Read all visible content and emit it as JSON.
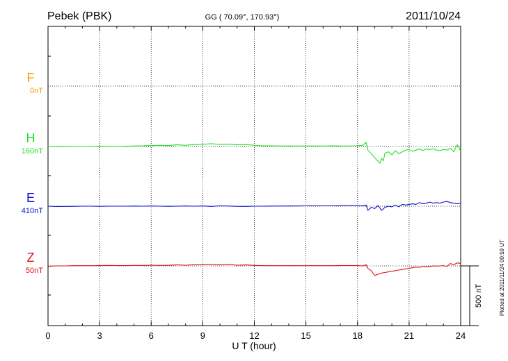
{
  "header": {
    "station": "Pebek (PBK)",
    "coords": "GG ( 70.09°, 170.93°)",
    "date": "2011/10/24"
  },
  "footer": {
    "plotted": "Plotted at 2011/11/24 00:59 UT"
  },
  "chart_data": {
    "type": "line",
    "xlabel": "U T (hour)",
    "xlim": [
      0,
      24
    ],
    "xticks": [
      0,
      3,
      6,
      9,
      12,
      15,
      18,
      21,
      24
    ],
    "ylabel": "",
    "grid": true,
    "scale_bar": {
      "label": "500 nT",
      "value_nT": 500
    },
    "colors": {
      "F": "#f5a000",
      "H": "#22e022",
      "E": "#1010cc",
      "Z": "#e01010"
    },
    "series": [
      {
        "name": "F",
        "offset": "0nT",
        "x": [],
        "values": []
      },
      {
        "name": "H",
        "offset": "160nT",
        "x": [
          0,
          0.5,
          1,
          1.5,
          2,
          2.5,
          3,
          3.5,
          4,
          4.5,
          5,
          5.5,
          6,
          6.5,
          7,
          7.5,
          8,
          8.5,
          9,
          9.5,
          10,
          10.5,
          11,
          11.5,
          12,
          12.5,
          13,
          13.5,
          14,
          14.5,
          15,
          15.5,
          16,
          16.5,
          17,
          17.5,
          18,
          18.3,
          18.5,
          18.6,
          18.8,
          19,
          19.2,
          19.3,
          19.4,
          19.5,
          19.6,
          19.8,
          20,
          20.2,
          20.4,
          20.6,
          20.8,
          21,
          21.2,
          21.4,
          21.6,
          21.8,
          22,
          22.2,
          22.4,
          22.6,
          22.8,
          23,
          23.2,
          23.4,
          23.6,
          23.8,
          24
        ],
        "values": [
          0,
          -2,
          -2,
          0,
          0,
          0,
          2,
          1,
          0,
          2,
          4,
          5,
          8,
          10,
          8,
          14,
          10,
          16,
          18,
          24,
          16,
          20,
          14,
          16,
          10,
          6,
          5,
          4,
          4,
          4,
          4,
          4,
          4,
          5,
          4,
          4,
          6,
          10,
          35,
          -30,
          -60,
          -95,
          -125,
          -140,
          -100,
          -120,
          -55,
          -45,
          -70,
          -35,
          -60,
          -45,
          -30,
          -25,
          -40,
          -30,
          -20,
          -35,
          -20,
          -25,
          -20,
          -30,
          -35,
          -25,
          -30,
          -15,
          -45,
          15,
          -40
        ]
      },
      {
        "name": "E",
        "offset": "410nT",
        "x": [
          0,
          0.5,
          1,
          1.5,
          2,
          2.5,
          3,
          3.5,
          4,
          4.5,
          5,
          5.5,
          6,
          6.5,
          7,
          7.5,
          8,
          8.5,
          9,
          9.5,
          10,
          10.5,
          11,
          11.5,
          12,
          12.5,
          13,
          13.5,
          14,
          14.5,
          15,
          15.5,
          16,
          16.5,
          17,
          17.5,
          18,
          18.3,
          18.5,
          18.6,
          18.8,
          19,
          19.2,
          19.4,
          19.6,
          19.8,
          20,
          20.2,
          20.4,
          20.6,
          20.8,
          21,
          21.2,
          21.4,
          21.6,
          21.8,
          22,
          22.2,
          22.4,
          22.6,
          22.8,
          23,
          23.2,
          23.4,
          23.6,
          23.8,
          24
        ],
        "values": [
          0,
          -3,
          -2,
          -1,
          0,
          0,
          -1,
          0,
          0,
          0,
          1,
          0,
          2,
          0,
          -1,
          0,
          2,
          0,
          2,
          -2,
          3,
          1,
          -1,
          -2,
          0,
          0,
          1,
          1,
          2,
          2,
          3,
          3,
          3,
          3,
          4,
          4,
          4,
          3,
          10,
          -35,
          -10,
          -20,
          5,
          -35,
          -10,
          0,
          -5,
          10,
          -5,
          15,
          10,
          15,
          20,
          15,
          30,
          20,
          25,
          35,
          25,
          30,
          25,
          35,
          40,
          30,
          25,
          20,
          25
        ]
      },
      {
        "name": "Z",
        "offset": "50nT",
        "x": [
          0,
          0.5,
          1,
          1.5,
          2,
          2.5,
          3,
          3.5,
          4,
          4.5,
          5,
          5.5,
          6,
          6.5,
          7,
          7.5,
          8,
          8.5,
          9,
          9.5,
          10,
          10.5,
          11,
          11.5,
          12,
          12.5,
          13,
          13.5,
          14,
          14.5,
          15,
          15.5,
          16,
          16.5,
          17,
          17.5,
          18,
          18.3,
          18.5,
          18.6,
          18.8,
          19,
          19.2,
          19.4,
          19.6,
          19.8,
          20,
          20.2,
          20.4,
          20.6,
          20.8,
          21,
          21.2,
          21.4,
          21.6,
          21.8,
          22,
          22.2,
          22.4,
          22.6,
          22.8,
          23,
          23.2,
          23.4,
          23.6,
          23.8,
          24
        ],
        "values": [
          -4,
          0,
          0,
          2,
          2,
          2,
          3,
          4,
          3,
          3,
          4,
          4,
          6,
          4,
          5,
          8,
          6,
          10,
          10,
          14,
          10,
          12,
          6,
          8,
          4,
          2,
          2,
          2,
          2,
          2,
          2,
          2,
          2,
          2,
          3,
          3,
          3,
          0,
          10,
          -20,
          -40,
          -80,
          -70,
          -60,
          -55,
          -50,
          -45,
          -40,
          -35,
          -30,
          -25,
          -20,
          -15,
          -10,
          -12,
          -5,
          -8,
          -5,
          0,
          -2,
          0,
          2,
          -5,
          20,
          10,
          25,
          20
        ]
      }
    ]
  }
}
